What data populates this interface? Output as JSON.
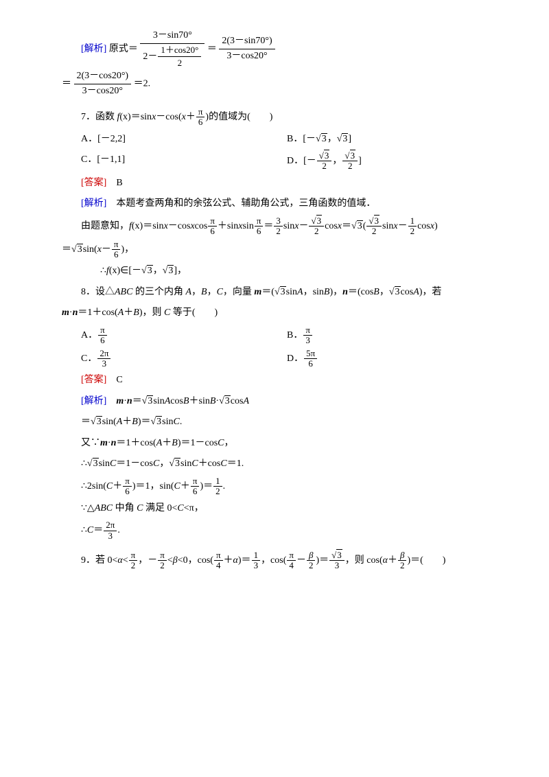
{
  "bracket_analysis": "[解析]",
  "bracket_answer": "[答案]",
  "expr_line1_a": "原式＝",
  "expr_line1_eq": "＝",
  "frac1_num_top": "3－sin70°",
  "frac1_den_left": "2－",
  "frac1_inner_num": "1＋cos20°",
  "frac1_inner_den": "2",
  "frac2_num": "2(3－sin70°)",
  "frac2_den": "3－cos20°",
  "expr_line2_eq1": "＝",
  "frac3_num": "2(3－cos20°)",
  "frac3_den": "3－cos20°",
  "expr_line2_eq2": "＝2.",
  "q7_prefix": "7．函数 ",
  "q7_fx": "f",
  "q7_paren_x": "(x)",
  "q7_mid1": "＝sin",
  "q7_x1": "x",
  "q7_mid2": "－cos(",
  "q7_x2": "x",
  "q7_plus": "＋",
  "q7_pi": "π",
  "q7_6": "6",
  "q7_tail": ")的值域为(　　)",
  "q7_A": "A．[－2,2]",
  "q7_B_pre": "B．[－",
  "q7_sqrt3": "3",
  "q7_B_sep": "，",
  "q7_B_end": "]",
  "q7_C": "C．[－1,1]",
  "q7_D_pre": "D．[－",
  "q7_D_sep": "，",
  "q7_D_end": "]",
  "q7_ans": "B",
  "q7_ana_text": "本题考查两角和的余弦公式、辅助角公式，三角函数的值域．",
  "q7_step1_a": "由题意知，",
  "q7_step1_fx": "f",
  "q7_step1_b": "(x)＝sin",
  "q7_step1_c": "－cos",
  "q7_step1_d": "cos",
  "q7_step1_e": "＋sin",
  "q7_step1_f": "sin",
  "q7_step1_g": "＝",
  "q7_32": "3",
  "q7_2": "2",
  "q7_step1_h": "sin",
  "q7_step1_i": "－",
  "q7_step1_j": "cos",
  "q7_step1_k": "＝",
  "q7_step1_l": "(",
  "q7_step1_m": "sin",
  "q7_step1_n": "－",
  "q7_12_num": "1",
  "q7_step1_o": "cos",
  "q7_step1_p": ")",
  "q7_step2_a": "＝",
  "q7_step2_b": "sin(",
  "q7_step2_c": "－",
  "q7_step2_d": ")，",
  "q7_step3_a": "∴",
  "q7_step3_b": "(x)∈[－",
  "q7_step3_c": "，",
  "q7_step3_d": "]，",
  "q8_a": "8．设△",
  "q8_ABC": "ABC",
  "q8_b": " 的三个内角 ",
  "q8_A": "A",
  "q8_c": "，",
  "q8_B": "B",
  "q8_C": "C",
  "q8_d": "，向量 ",
  "q8_m": "m",
  "q8_e": "＝(",
  "q8_f": "sin",
  "q8_g": "，sin",
  "q8_h": ")，",
  "q8_n": "n",
  "q8_i": "＝(cos",
  "q8_j": "，",
  "q8_k": "cos",
  "q8_l": ")，若",
  "q8_line2_a": "·",
  "q8_line2_b": "＝1＋cos(",
  "q8_line2_c": "＋",
  "q8_line2_d": ")，则 ",
  "q8_line2_e": " 等于(　　)",
  "q8_optA_pre": "A．",
  "q8_optB_pre": "B．",
  "q8_optC_pre": "C．",
  "q8_optD_pre": "D．",
  "q8_pi": "π",
  "q8_3": "3",
  "q8_6": "6",
  "q8_2pi": "2π",
  "q8_5pi": "5π",
  "q8_ans": "C",
  "q8_s1_a": "·",
  "q8_s1_b": "＝",
  "q8_s1_c": "sin",
  "q8_s1_d": "cos",
  "q8_s1_e": "＋sin",
  "q8_s1_f": "·",
  "q8_s1_g": "cos",
  "q8_s2_a": "＝",
  "q8_s2_b": "sin(",
  "q8_s2_c": "＋",
  "q8_s2_d": ")＝",
  "q8_s2_e": "sin",
  "q8_s2_f": ".",
  "q8_s3_a": "又∵",
  "q8_s3_b": "·",
  "q8_s3_c": "＝1＋cos(",
  "q8_s3_d": "＋",
  "q8_s3_e": ")＝1－cos",
  "q8_s3_f": "，",
  "q8_s4_a": "∴",
  "q8_s4_b": "sin",
  "q8_s4_c": "＝1－cos",
  "q8_s4_d": "，",
  "q8_s4_e": "sin",
  "q8_s4_f": "＋cos",
  "q8_s4_g": "＝1.",
  "q8_s5_a": "∴2sin(",
  "q8_s5_b": "＋",
  "q8_s5_c": ")＝1，sin(",
  "q8_s5_d": "＋",
  "q8_s5_e": ")＝",
  "q8_s5_f": ".",
  "q8_s6_a": "∵△",
  "q8_s6_b": " 中角 ",
  "q8_s6_c": " 满足 0<",
  "q8_s6_d": "<π，",
  "q8_s7_a": "∴",
  "q8_s7_b": "＝",
  "q8_s7_c": ".",
  "q9_a": "9．若 0<",
  "q9_alpha": "α",
  "q9_b": "<",
  "q9_c": "，－",
  "q9_d": "<",
  "q9_beta": "β",
  "q9_e": "<0，cos(",
  "q9_f": "＋",
  "q9_g": ")＝",
  "q9_h": "，cos(",
  "q9_i": "－",
  "q9_j": ")＝",
  "q9_k": "，则 cos(",
  "q9_l": "＋",
  "q9_m": ")＝(　　)",
  "q9_pi": "π",
  "q9_2": "2",
  "q9_4": "4",
  "q9_1": "1",
  "q9_3": "3"
}
